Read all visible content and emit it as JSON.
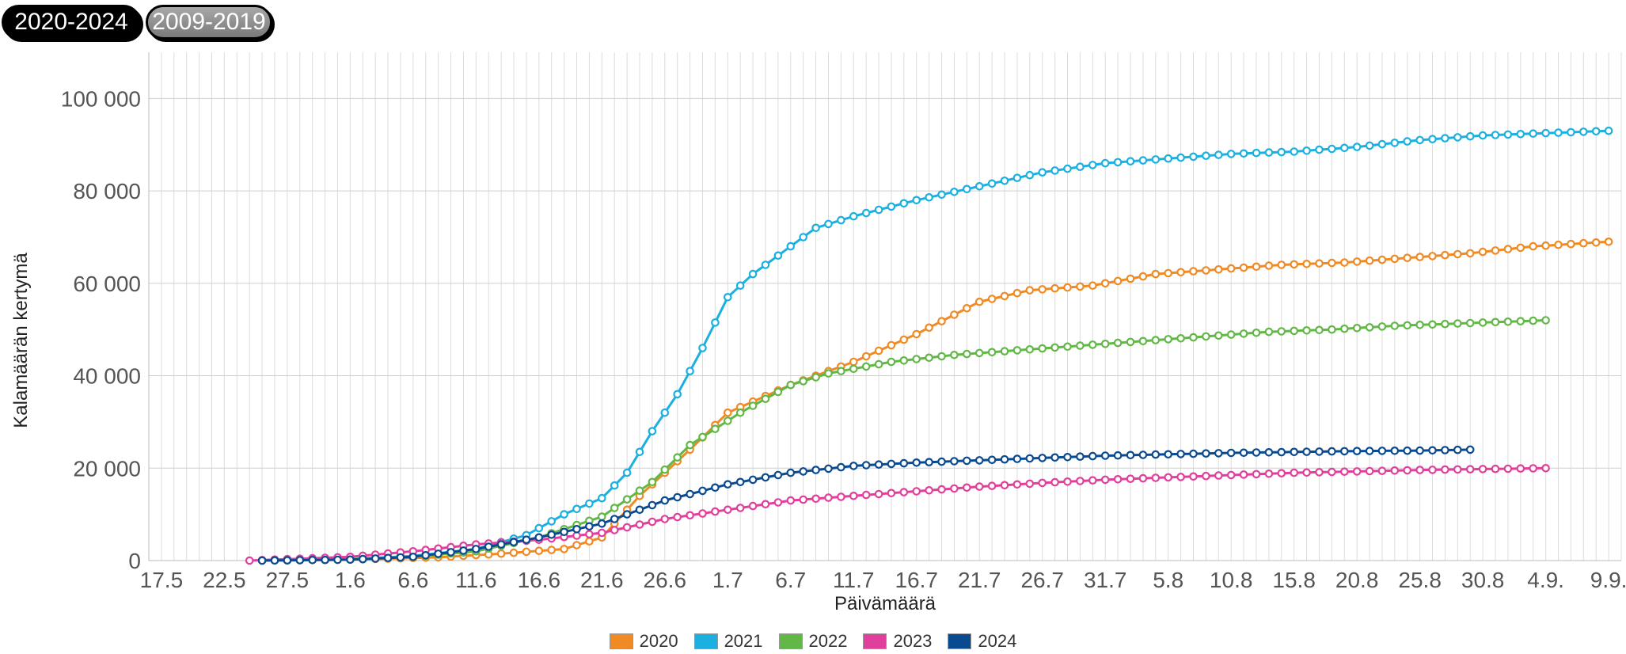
{
  "tabs": {
    "active_label": "2020-2024",
    "inactive_label": "2009-2019"
  },
  "chart_data": {
    "type": "line",
    "xlabel": "Päivämäärä",
    "ylabel": "Kalamäärän kertymä",
    "ylim": [
      0,
      110000
    ],
    "yticks": [
      0,
      20000,
      40000,
      60000,
      80000,
      100000
    ],
    "ytick_labels": [
      "0",
      "20 000",
      "40 000",
      "60 000",
      "80 000",
      "100 000"
    ],
    "xlim": [
      "2020-05-16",
      "2020-09-10"
    ],
    "xticks": [
      {
        "date": "2020-05-17",
        "label": "17.5"
      },
      {
        "date": "2020-05-22",
        "label": "22.5"
      },
      {
        "date": "2020-05-27",
        "label": "27.5"
      },
      {
        "date": "2020-06-01",
        "label": "1.6"
      },
      {
        "date": "2020-06-06",
        "label": "6.6"
      },
      {
        "date": "2020-06-11",
        "label": "11.6"
      },
      {
        "date": "2020-06-16",
        "label": "16.6"
      },
      {
        "date": "2020-06-21",
        "label": "21.6"
      },
      {
        "date": "2020-06-26",
        "label": "26.6"
      },
      {
        "date": "2020-07-01",
        "label": "1.7"
      },
      {
        "date": "2020-07-06",
        "label": "6.7"
      },
      {
        "date": "2020-07-11",
        "label": "11.7"
      },
      {
        "date": "2020-07-16",
        "label": "16.7"
      },
      {
        "date": "2020-07-21",
        "label": "21.7"
      },
      {
        "date": "2020-07-26",
        "label": "26.7"
      },
      {
        "date": "2020-07-31",
        "label": "31.7"
      },
      {
        "date": "2020-08-05",
        "label": "5.8"
      },
      {
        "date": "2020-08-10",
        "label": "10.8"
      },
      {
        "date": "2020-08-15",
        "label": "15.8"
      },
      {
        "date": "2020-08-20",
        "label": "20.8"
      },
      {
        "date": "2020-08-25",
        "label": "25.8"
      },
      {
        "date": "2020-08-30",
        "label": "30.8"
      },
      {
        "date": "2020-09-04",
        "label": "4.9."
      },
      {
        "date": "2020-09-09",
        "label": "9.9."
      }
    ],
    "grid": true,
    "legend_position": "bottom",
    "series": [
      {
        "name": "2020",
        "color": "#f08a24",
        "points": [
          [
            "2020-05-25",
            0
          ],
          [
            "2020-06-01",
            200
          ],
          [
            "2020-06-08",
            700
          ],
          [
            "2020-06-13",
            1500
          ],
          [
            "2020-06-18",
            2500
          ],
          [
            "2020-06-21",
            5000
          ],
          [
            "2020-06-24",
            14000
          ],
          [
            "2020-06-28",
            24000
          ],
          [
            "2020-07-01",
            32000
          ],
          [
            "2020-07-06",
            38000
          ],
          [
            "2020-07-11",
            43000
          ],
          [
            "2020-07-16",
            49000
          ],
          [
            "2020-07-21",
            56000
          ],
          [
            "2020-07-25",
            58500
          ],
          [
            "2020-07-30",
            59500
          ],
          [
            "2020-08-04",
            62000
          ],
          [
            "2020-08-09",
            63000
          ],
          [
            "2020-08-14",
            64000
          ],
          [
            "2020-08-19",
            64500
          ],
          [
            "2020-08-24",
            65500
          ],
          [
            "2020-08-29",
            66500
          ],
          [
            "2020-09-03",
            68000
          ],
          [
            "2020-09-09",
            69000
          ]
        ]
      },
      {
        "name": "2021",
        "color": "#1cb0e0",
        "points": [
          [
            "2020-05-25",
            0
          ],
          [
            "2020-06-01",
            300
          ],
          [
            "2020-06-06",
            1000
          ],
          [
            "2020-06-11",
            2500
          ],
          [
            "2020-06-15",
            5500
          ],
          [
            "2020-06-18",
            10000
          ],
          [
            "2020-06-21",
            13500
          ],
          [
            "2020-06-23",
            19000
          ],
          [
            "2020-06-25",
            28000
          ],
          [
            "2020-06-27",
            36000
          ],
          [
            "2020-06-29",
            46000
          ],
          [
            "2020-07-01",
            57000
          ],
          [
            "2020-07-03",
            62000
          ],
          [
            "2020-07-06",
            68000
          ],
          [
            "2020-07-08",
            72000
          ],
          [
            "2020-07-11",
            74500
          ],
          [
            "2020-07-16",
            78000
          ],
          [
            "2020-07-21",
            81000
          ],
          [
            "2020-07-26",
            84000
          ],
          [
            "2020-07-31",
            86000
          ],
          [
            "2020-08-05",
            87000
          ],
          [
            "2020-08-10",
            88000
          ],
          [
            "2020-08-15",
            88500
          ],
          [
            "2020-08-20",
            89500
          ],
          [
            "2020-08-25",
            91000
          ],
          [
            "2020-08-30",
            92000
          ],
          [
            "2020-09-04",
            92500
          ],
          [
            "2020-09-09",
            93000
          ]
        ]
      },
      {
        "name": "2022",
        "color": "#62b846",
        "points": [
          [
            "2020-05-25",
            0
          ],
          [
            "2020-06-01",
            300
          ],
          [
            "2020-06-06",
            800
          ],
          [
            "2020-06-11",
            2000
          ],
          [
            "2020-06-16",
            5000
          ],
          [
            "2020-06-21",
            9500
          ],
          [
            "2020-06-25",
            17000
          ],
          [
            "2020-06-28",
            25000
          ],
          [
            "2020-07-02",
            32000
          ],
          [
            "2020-07-06",
            38000
          ],
          [
            "2020-07-09",
            40500
          ],
          [
            "2020-07-14",
            43000
          ],
          [
            "2020-07-19",
            44500
          ],
          [
            "2020-07-24",
            45500
          ],
          [
            "2020-07-29",
            46500
          ],
          [
            "2020-08-03",
            47500
          ],
          [
            "2020-08-08",
            48500
          ],
          [
            "2020-08-13",
            49500
          ],
          [
            "2020-08-18",
            50000
          ],
          [
            "2020-08-23",
            50800
          ],
          [
            "2020-08-28",
            51300
          ],
          [
            "2020-09-04",
            52000
          ]
        ]
      },
      {
        "name": "2023",
        "color": "#e0409c",
        "points": [
          [
            "2020-05-24",
            0
          ],
          [
            "2020-06-01",
            800
          ],
          [
            "2020-06-06",
            2000
          ],
          [
            "2020-06-11",
            3500
          ],
          [
            "2020-06-16",
            4500
          ],
          [
            "2020-06-21",
            6000
          ],
          [
            "2020-06-26",
            9000
          ],
          [
            "2020-07-01",
            11000
          ],
          [
            "2020-07-06",
            13000
          ],
          [
            "2020-07-11",
            14000
          ],
          [
            "2020-07-16",
            15000
          ],
          [
            "2020-07-21",
            16000
          ],
          [
            "2020-07-26",
            16800
          ],
          [
            "2020-07-31",
            17500
          ],
          [
            "2020-08-05",
            18000
          ],
          [
            "2020-08-10",
            18500
          ],
          [
            "2020-08-15",
            19000
          ],
          [
            "2020-08-20",
            19300
          ],
          [
            "2020-08-25",
            19600
          ],
          [
            "2020-08-30",
            19800
          ],
          [
            "2020-09-04",
            20000
          ]
        ]
      },
      {
        "name": "2024",
        "color": "#0a4a90",
        "points": [
          [
            "2020-05-25",
            0
          ],
          [
            "2020-06-01",
            200
          ],
          [
            "2020-06-06",
            800
          ],
          [
            "2020-06-11",
            2500
          ],
          [
            "2020-06-16",
            5000
          ],
          [
            "2020-06-21",
            8000
          ],
          [
            "2020-06-26",
            13000
          ],
          [
            "2020-07-01",
            16500
          ],
          [
            "2020-07-06",
            19000
          ],
          [
            "2020-07-11",
            20500
          ],
          [
            "2020-07-16",
            21200
          ],
          [
            "2020-07-21",
            21700
          ],
          [
            "2020-07-26",
            22200
          ],
          [
            "2020-07-31",
            22700
          ],
          [
            "2020-08-05",
            23000
          ],
          [
            "2020-08-10",
            23300
          ],
          [
            "2020-08-15",
            23500
          ],
          [
            "2020-08-20",
            23700
          ],
          [
            "2020-08-25",
            23800
          ],
          [
            "2020-08-29",
            24000
          ]
        ]
      }
    ]
  }
}
